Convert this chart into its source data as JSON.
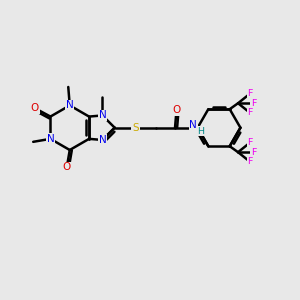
{
  "background_color": "#e8e8e8",
  "bond_color": "#000000",
  "atom_colors": {
    "N": "#0000ee",
    "O": "#dd0000",
    "S": "#ccaa00",
    "F": "#ee00ee",
    "H": "#008888"
  },
  "bond_width": 1.8,
  "figsize": [
    3.0,
    3.0
  ],
  "dpi": 100
}
